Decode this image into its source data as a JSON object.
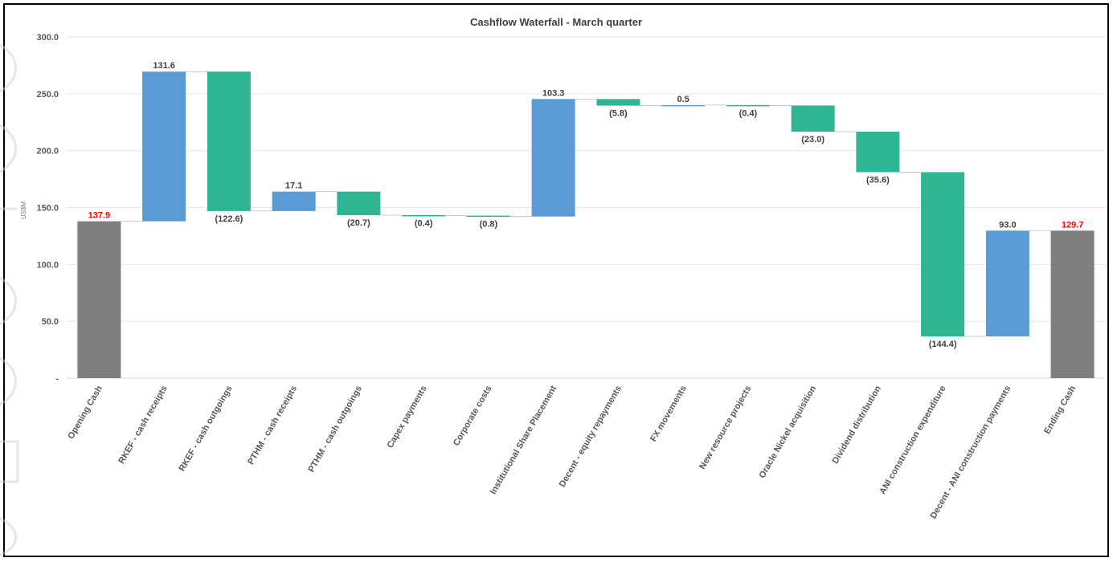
{
  "chart_data": {
    "type": "bar",
    "subtype": "waterfall",
    "title": "Cashflow Waterfall - March quarter",
    "ylabel": "US$M",
    "xlabel": "",
    "ylim": [
      0,
      300
    ],
    "y_ticks": [
      {
        "value": 0,
        "label": "-"
      },
      {
        "value": 50,
        "label": "50.0"
      },
      {
        "value": 100,
        "label": "100.0"
      },
      {
        "value": 150,
        "label": "150.0"
      },
      {
        "value": 200,
        "label": "200.0"
      },
      {
        "value": 250,
        "label": "250.0"
      },
      {
        "value": 300,
        "label": "300.0"
      }
    ],
    "grid": true,
    "legend": "none",
    "colors": {
      "total": "#7f7f7f",
      "increase": "#5b9bd5",
      "decrease": "#2fb594",
      "total_label": "#ff0000",
      "label": "#404040"
    },
    "categories": [
      "Opening Cash",
      "RKEF - cash receipts",
      "RKEF - cash outgoings",
      "PTHM - cash receipts",
      "PTHM - cash outgoings",
      "Capex payments",
      "Corporate costs",
      "Institutional Share Placement",
      "Decent - equity repayments",
      "FX movements",
      "New resource projects",
      "Oracle Nickel acquisition",
      "Dividend distribution",
      "ANI construction expenditure",
      "Decent - ANI construction payments",
      "Ending Cash"
    ],
    "values": [
      137.9,
      131.6,
      -122.6,
      17.1,
      -20.7,
      -0.4,
      -0.8,
      103.3,
      -5.8,
      0.5,
      -0.4,
      -23.0,
      -35.6,
      -144.4,
      93.0,
      129.7
    ],
    "kinds": [
      "total",
      "increase",
      "decrease",
      "increase",
      "decrease",
      "decrease",
      "decrease",
      "increase",
      "decrease",
      "increase",
      "decrease",
      "decrease",
      "decrease",
      "decrease",
      "increase",
      "total"
    ],
    "data_labels": [
      "137.9",
      "131.6",
      "(122.6)",
      "17.1",
      "(20.7)",
      "(0.4)",
      "(0.8)",
      "103.3",
      "(5.8)",
      "0.5",
      "(0.4)",
      "(23.0)",
      "(35.6)",
      "(144.4)",
      "93.0",
      "129.7"
    ]
  }
}
